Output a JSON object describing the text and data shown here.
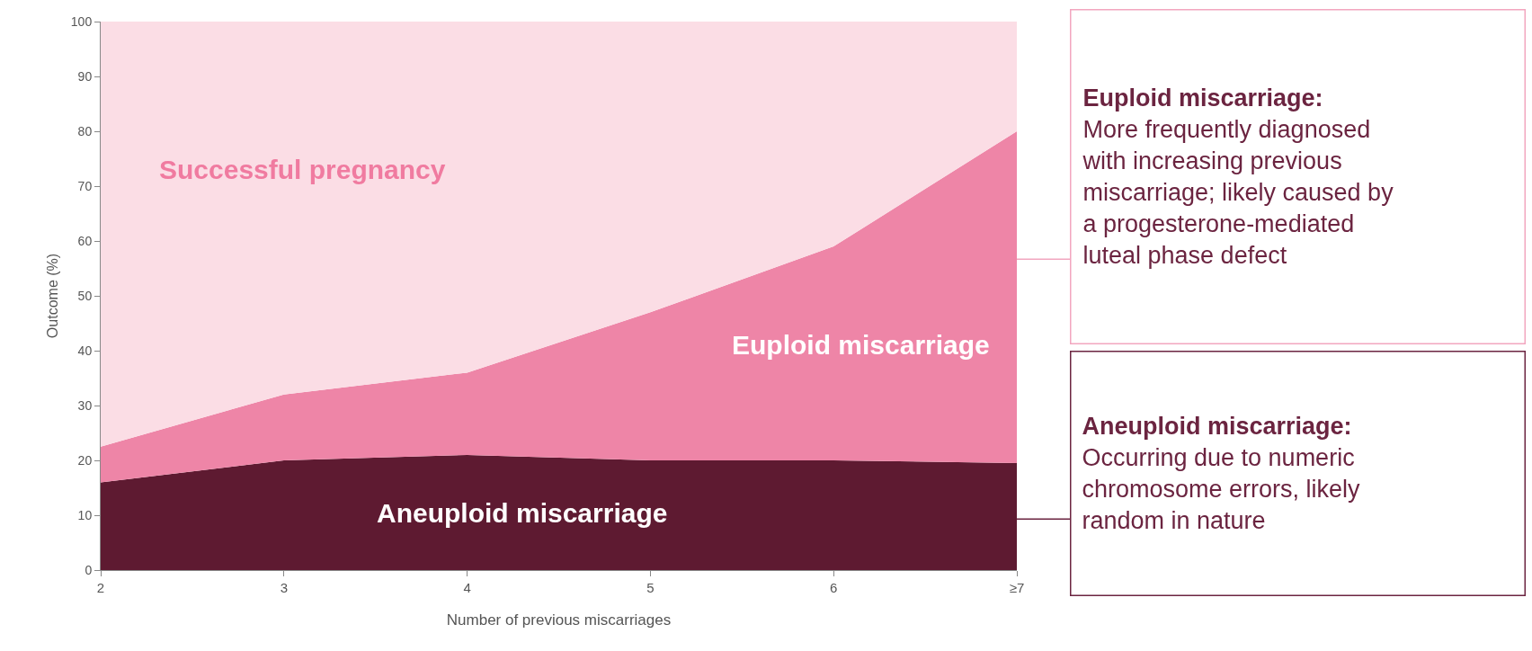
{
  "chart_data": {
    "type": "area",
    "stacked": true,
    "xlabel": "Number of previous miscarriages",
    "ylabel": "Outcome (%)",
    "x": [
      2,
      3,
      4,
      5,
      6,
      7
    ],
    "series": [
      {
        "name": "Aneuploid miscarriage",
        "color": "#5e1a31",
        "values": [
          16,
          20,
          21,
          20,
          20,
          19.5
        ]
      },
      {
        "name": "Euploid miscarriage",
        "color": "#ee85a7",
        "values": [
          6.5,
          12,
          15,
          27,
          39,
          60.5
        ]
      },
      {
        "name": "Successful pregnancy",
        "color": "#fbdde5",
        "values": [
          77.5,
          68,
          64,
          53,
          41,
          20
        ]
      }
    ],
    "xlim": [
      2,
      7
    ],
    "xticks": [
      2,
      3,
      4,
      5,
      6,
      {
        "value": 7,
        "label": "≥7"
      }
    ],
    "ylim": [
      0,
      100
    ],
    "yticks": [
      0,
      10,
      20,
      30,
      40,
      50,
      60,
      70,
      80,
      90,
      100
    ],
    "legend": false,
    "annotations": [
      "Euploid miscarriage:\nMore frequently diagnosed\nwith increasing previous\nmiscarriage; likely caused by\na progesterone-mediated\nluteal phase defect",
      "Aneuploid miscarriage:\nOccurring due to numeric\nchromosome errors, likely\nrandom in nature"
    ]
  }
}
